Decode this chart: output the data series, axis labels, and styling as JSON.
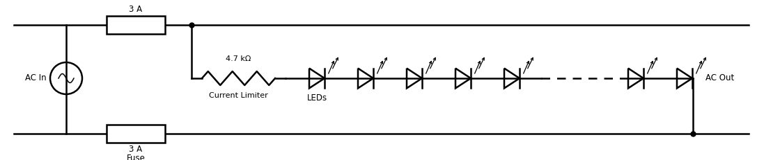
{
  "bg_color": "#ffffff",
  "line_color": "#000000",
  "line_width": 1.8,
  "fig_width": 11.2,
  "fig_height": 2.31,
  "dpi": 100,
  "labels": {
    "ac_in": "AC In",
    "ac_out": "AC Out",
    "fuse_top_label": "3 A",
    "fuse_bot_label": "3 A",
    "fuse_name": "Fuse",
    "resistor_label": "4.7 kΩ",
    "current_limiter": "Current Limiter",
    "leds": "LEDs"
  }
}
